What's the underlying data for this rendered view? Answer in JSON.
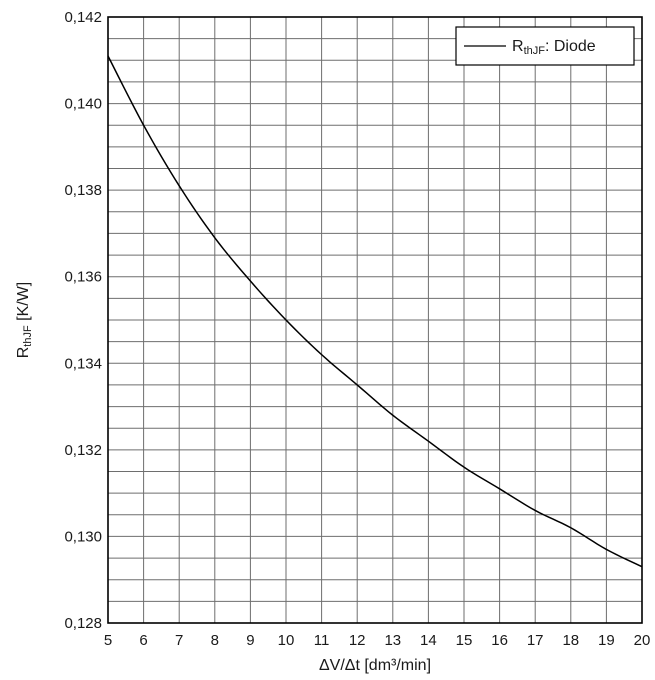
{
  "chart_data": {
    "type": "line",
    "xlabel": "ΔV/Δt [dm³/min]",
    "ylabel": {
      "main": "R",
      "sub": "thJF",
      "unit": " [K/W]"
    },
    "xlim": [
      5,
      20
    ],
    "ylim": [
      0.128,
      0.142
    ],
    "grid": true,
    "legend_position": "top-right",
    "x_ticks": [
      {
        "value": 5,
        "label": "5"
      },
      {
        "value": 6,
        "label": "6"
      },
      {
        "value": 7,
        "label": "7"
      },
      {
        "value": 8,
        "label": "8"
      },
      {
        "value": 9,
        "label": "9"
      },
      {
        "value": 10,
        "label": "10"
      },
      {
        "value": 11,
        "label": "11"
      },
      {
        "value": 12,
        "label": "12"
      },
      {
        "value": 13,
        "label": "13"
      },
      {
        "value": 14,
        "label": "14"
      },
      {
        "value": 15,
        "label": "15"
      },
      {
        "value": 16,
        "label": "16"
      },
      {
        "value": 17,
        "label": "17"
      },
      {
        "value": 18,
        "label": "18"
      },
      {
        "value": 19,
        "label": "19"
      },
      {
        "value": 20,
        "label": "20"
      }
    ],
    "y_ticks": [
      {
        "value": 0.128,
        "label": "0,128"
      },
      {
        "value": 0.13,
        "label": "0,130"
      },
      {
        "value": 0.132,
        "label": "0,132"
      },
      {
        "value": 0.134,
        "label": "0,134"
      },
      {
        "value": 0.136,
        "label": "0,136"
      },
      {
        "value": 0.138,
        "label": "0,138"
      },
      {
        "value": 0.14,
        "label": "0,140"
      },
      {
        "value": 0.142,
        "label": "0,142"
      }
    ],
    "series": [
      {
        "name": {
          "main": "R",
          "sub": "thJF",
          "suffix": ": Diode"
        },
        "color": "#000000",
        "x": [
          5,
          6,
          7,
          8,
          9,
          10,
          11,
          12,
          13,
          14,
          15,
          16,
          17,
          18,
          19,
          20
        ],
        "y": [
          0.1411,
          0.1395,
          0.1381,
          0.1369,
          0.1359,
          0.135,
          0.1342,
          0.1335,
          0.1328,
          0.1322,
          0.1316,
          0.1311,
          0.1306,
          0.1302,
          0.1297,
          0.1293
        ]
      }
    ]
  }
}
